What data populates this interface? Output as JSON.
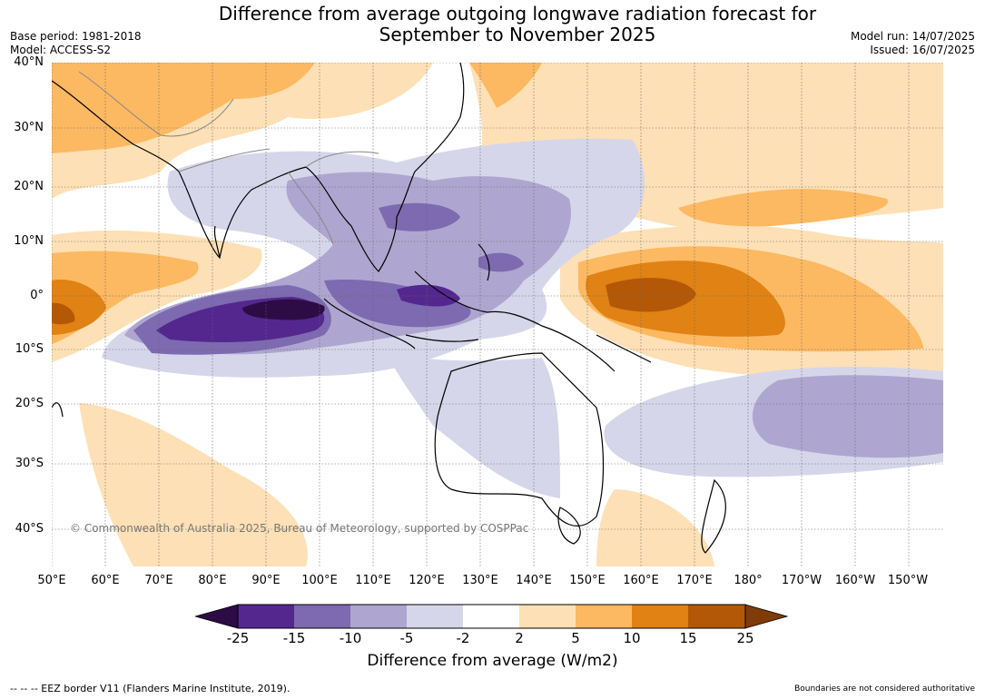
{
  "header": {
    "title_line1": "Difference from average outgoing longwave radiation forecast for",
    "title_line2": "September to November 2025",
    "base_period": "Base period: 1981-2018",
    "model": "Model: ACCESS-S2",
    "model_run": "Model run: 14/07/2025",
    "issued": "Issued: 16/07/2025"
  },
  "map": {
    "copyright": "© Commonwealth of Australia 2025, Bureau of Meteorology, supported by COSPPac",
    "lat_labels": [
      "40°N",
      "30°N",
      "20°N",
      "10°N",
      "0°",
      "10°S",
      "20°S",
      "30°S",
      "40°S"
    ],
    "lon_labels": [
      "50°E",
      "60°E",
      "70°E",
      "80°E",
      "90°E",
      "100°E",
      "110°E",
      "120°E",
      "130°E",
      "140°E",
      "150°E",
      "160°E",
      "170°E",
      "180°",
      "170°W",
      "160°W",
      "150°W"
    ]
  },
  "colorbar": {
    "title": "Difference from average (W/m2)",
    "ticks": [
      "-25",
      "-15",
      "-10",
      "-5",
      "-2",
      "2",
      "5",
      "10",
      "15",
      "25"
    ],
    "colors": [
      "#2d0b45",
      "#54278f",
      "#7d6ab0",
      "#aea6d0",
      "#d6d6ea",
      "#ffffff",
      "#fde0b5",
      "#fdb862",
      "#e08214",
      "#b35806",
      "#7f3b08"
    ]
  },
  "footer": {
    "eez": "--  --  -- EEZ border V11 (Flanders Marine Institute, 2019).",
    "disclaimer": "Boundaries are not considered authoritative"
  }
}
